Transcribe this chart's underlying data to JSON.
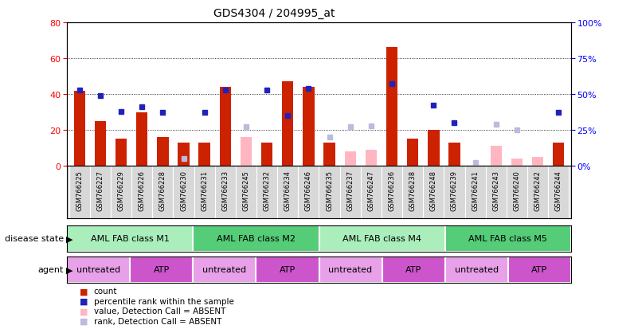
{
  "title": "GDS4304 / 204995_at",
  "samples": [
    "GSM766225",
    "GSM766227",
    "GSM766229",
    "GSM766226",
    "GSM766228",
    "GSM766230",
    "GSM766231",
    "GSM766233",
    "GSM766245",
    "GSM766232",
    "GSM766234",
    "GSM766246",
    "GSM766235",
    "GSM766237",
    "GSM766247",
    "GSM766236",
    "GSM766238",
    "GSM766248",
    "GSM766239",
    "GSM766241",
    "GSM766243",
    "GSM766240",
    "GSM766242",
    "GSM766244"
  ],
  "count_values": [
    42,
    25,
    15,
    30,
    16,
    13,
    13,
    44,
    null,
    13,
    47,
    44,
    13,
    null,
    null,
    66,
    15,
    20,
    13,
    null,
    null,
    null,
    null,
    13
  ],
  "rank_values": [
    53,
    49,
    38,
    41,
    37,
    null,
    37,
    53,
    null,
    53,
    35,
    54,
    null,
    null,
    null,
    57,
    null,
    42,
    30,
    null,
    null,
    null,
    null,
    37
  ],
  "count_absent": [
    null,
    null,
    null,
    null,
    null,
    null,
    null,
    null,
    16,
    null,
    null,
    null,
    null,
    8,
    9,
    null,
    null,
    null,
    null,
    null,
    11,
    4,
    5,
    null
  ],
  "rank_absent": [
    null,
    null,
    null,
    null,
    null,
    5,
    null,
    null,
    27,
    null,
    null,
    null,
    20,
    27,
    28,
    null,
    null,
    null,
    null,
    2,
    29,
    25,
    null,
    null
  ],
  "disease_state_groups": [
    {
      "label": "AML FAB class M1",
      "start": 0,
      "end": 6
    },
    {
      "label": "AML FAB class M2",
      "start": 6,
      "end": 12
    },
    {
      "label": "AML FAB class M4",
      "start": 12,
      "end": 18
    },
    {
      "label": "AML FAB class M5",
      "start": 18,
      "end": 24
    }
  ],
  "agent_groups": [
    {
      "label": "untreated",
      "start": 0,
      "end": 3,
      "color": "#E8A0E8"
    },
    {
      "label": "ATP",
      "start": 3,
      "end": 6,
      "color": "#CC55CC"
    },
    {
      "label": "untreated",
      "start": 6,
      "end": 9,
      "color": "#E8A0E8"
    },
    {
      "label": "ATP",
      "start": 9,
      "end": 12,
      "color": "#CC55CC"
    },
    {
      "label": "untreated",
      "start": 12,
      "end": 15,
      "color": "#E8A0E8"
    },
    {
      "label": "ATP",
      "start": 15,
      "end": 18,
      "color": "#CC55CC"
    },
    {
      "label": "untreated",
      "start": 18,
      "end": 21,
      "color": "#E8A0E8"
    },
    {
      "label": "ATP",
      "start": 21,
      "end": 24,
      "color": "#CC55CC"
    }
  ],
  "left_ylim": [
    0,
    80
  ],
  "right_ylim": [
    0,
    100
  ],
  "left_yticks": [
    0,
    20,
    40,
    60,
    80
  ],
  "right_yticks": [
    0,
    25,
    50,
    75,
    100
  ],
  "bar_color": "#CC2200",
  "rank_color": "#2222BB",
  "absent_bar_color": "#FFB6C1",
  "absent_rank_color": "#BBBBDD",
  "bar_width": 0.55,
  "ds_green_light": "#AAEEBB",
  "ds_green_dark": "#55CC77",
  "legend_items": [
    {
      "label": "count",
      "color": "#CC2200"
    },
    {
      "label": "percentile rank within the sample",
      "color": "#2222BB"
    },
    {
      "label": "value, Detection Call = ABSENT",
      "color": "#FFB6C1"
    },
    {
      "label": "rank, Detection Call = ABSENT",
      "color": "#BBBBDD"
    }
  ]
}
